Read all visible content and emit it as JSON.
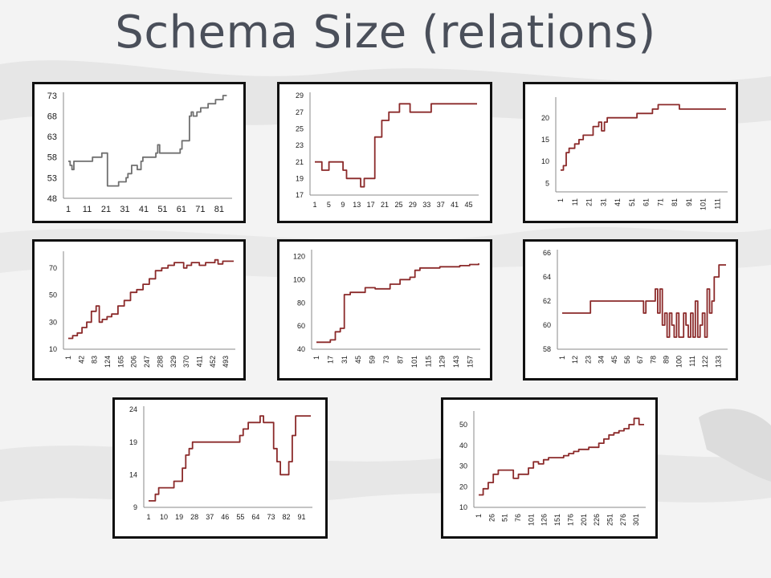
{
  "slide": {
    "title": "Schema Size (relations)"
  },
  "colors": {
    "line_primary": "#8b2a2a",
    "line_gray": "#707070",
    "panel_border": "#111111",
    "background": "#f3f3f3",
    "title": "#4a4f5a"
  },
  "chart_data": [
    {
      "type": "line",
      "color": "gray",
      "ylim": [
        48,
        73
      ],
      "yticks": [
        48,
        53,
        58,
        63,
        68,
        73
      ],
      "xticks": [
        "1",
        "11",
        "21",
        "31",
        "41",
        "51",
        "61",
        "71",
        "81"
      ],
      "xlim": [
        1,
        88
      ],
      "xlabel_rotated": false,
      "x": [
        1,
        2,
        3,
        4,
        6,
        10,
        11,
        12,
        14,
        16,
        17,
        19,
        20,
        21,
        22,
        23,
        26,
        27,
        28,
        29,
        32,
        33,
        35,
        37,
        38,
        40,
        41,
        43,
        46,
        48,
        49,
        50,
        52,
        55,
        58,
        60,
        61,
        62,
        64,
        66,
        67,
        68,
        70,
        72,
        74,
        76,
        79,
        80,
        83,
        84,
        86
      ],
      "y": [
        57,
        56,
        55,
        57,
        57,
        57,
        57,
        57,
        58,
        58,
        58,
        59,
        59,
        59,
        51,
        51,
        51,
        51,
        52,
        52,
        53,
        54,
        56,
        56,
        55,
        57,
        58,
        58,
        58,
        59,
        61,
        59,
        59,
        59,
        59,
        59,
        60,
        62,
        62,
        68,
        69,
        68,
        69,
        70,
        70,
        71,
        71,
        72,
        72,
        73,
        73
      ]
    },
    {
      "type": "line",
      "color": "primary",
      "ylim": [
        17,
        29
      ],
      "yticks": [
        17,
        19,
        21,
        23,
        25,
        27,
        29
      ],
      "xticks": [
        "1",
        "5",
        "9",
        "13",
        "17",
        "21",
        "25",
        "29",
        "33",
        "37",
        "41",
        "45"
      ],
      "xlim": [
        1,
        47
      ],
      "xlabel_rotated": false,
      "x": [
        1,
        2,
        3,
        4,
        5,
        6,
        7,
        8,
        9,
        10,
        11,
        12,
        13,
        14,
        15,
        16,
        17,
        18,
        19,
        20,
        21,
        22,
        23,
        24,
        25,
        26,
        27,
        28,
        29,
        30,
        31,
        32,
        33,
        34,
        35,
        36,
        37,
        38,
        39,
        40,
        41,
        42,
        43,
        44,
        45,
        46,
        47
      ],
      "y": [
        21,
        21,
        20,
        20,
        21,
        21,
        21,
        21,
        20,
        19,
        19,
        19,
        19,
        18,
        19,
        19,
        19,
        24,
        24,
        26,
        26,
        27,
        27,
        27,
        28,
        28,
        28,
        27,
        27,
        27,
        27,
        27,
        27,
        28,
        28,
        28,
        28,
        28,
        28,
        28,
        28,
        28,
        28,
        28,
        28,
        28,
        28
      ]
    },
    {
      "type": "line",
      "color": "primary",
      "ylim": [
        3,
        24
      ],
      "yticks": [
        5,
        10,
        15,
        20
      ],
      "xticks": [
        "1",
        "11",
        "21",
        "31",
        "41",
        "51",
        "61",
        "71",
        "81",
        "91",
        "101",
        "111"
      ],
      "xlim": [
        1,
        118
      ],
      "xlabel_rotated": true,
      "x": [
        1,
        3,
        5,
        7,
        9,
        11,
        14,
        17,
        20,
        24,
        28,
        30,
        32,
        34,
        37,
        45,
        55,
        60,
        66,
        68,
        70,
        73,
        75,
        85,
        100,
        118
      ],
      "y": [
        8,
        9,
        12,
        13,
        13,
        14,
        15,
        16,
        16,
        18,
        19,
        17,
        19,
        20,
        20,
        20,
        21,
        21,
        22,
        22,
        23,
        23,
        23,
        22,
        22,
        22
      ]
    },
    {
      "type": "line",
      "color": "primary",
      "ylim": [
        10,
        80
      ],
      "yticks": [
        10,
        30,
        50,
        70
      ],
      "xticks": [
        "1",
        "42",
        "83",
        "124",
        "165",
        "206",
        "247",
        "288",
        "329",
        "370",
        "411",
        "452",
        "493"
      ],
      "xlim": [
        1,
        530
      ],
      "xlabel_rotated": true,
      "x": [
        1,
        15,
        30,
        45,
        60,
        75,
        90,
        100,
        110,
        125,
        140,
        160,
        180,
        200,
        220,
        240,
        260,
        280,
        300,
        320,
        340,
        360,
        370,
        380,
        395,
        420,
        440,
        460,
        470,
        480,
        495,
        510,
        530
      ],
      "y": [
        18,
        20,
        22,
        26,
        30,
        38,
        42,
        30,
        32,
        34,
        36,
        42,
        46,
        52,
        54,
        58,
        62,
        68,
        70,
        72,
        74,
        74,
        70,
        72,
        74,
        72,
        74,
        74,
        76,
        73,
        75,
        75,
        75
      ]
    },
    {
      "type": "line",
      "color": "primary",
      "ylim": [
        40,
        123
      ],
      "yticks": [
        40,
        60,
        80,
        100,
        120
      ],
      "xticks": [
        "1",
        "17",
        "31",
        "45",
        "59",
        "73",
        "87",
        "101",
        "115",
        "129",
        "143",
        "157"
      ],
      "xlim": [
        1,
        164
      ],
      "xlabel_rotated": true,
      "x": [
        1,
        10,
        15,
        20,
        25,
        27,
        29,
        35,
        45,
        50,
        55,
        60,
        70,
        75,
        85,
        95,
        100,
        105,
        115,
        125,
        135,
        145,
        155,
        164
      ],
      "y": [
        46,
        46,
        48,
        55,
        58,
        58,
        87,
        89,
        89,
        93,
        93,
        92,
        92,
        96,
        100,
        102,
        108,
        110,
        110,
        111,
        111,
        112,
        113,
        114
      ]
    },
    {
      "type": "line",
      "color": "primary",
      "ylim": [
        58,
        66
      ],
      "yticks": [
        58,
        60,
        62,
        64,
        66
      ],
      "xticks": [
        "1",
        "12",
        "23",
        "34",
        "45",
        "56",
        "67",
        "78",
        "89",
        "100",
        "111",
        "122",
        "133"
      ],
      "xlim": [
        1,
        140
      ],
      "xlabel_rotated": true,
      "x": [
        1,
        20,
        25,
        40,
        60,
        68,
        70,
        72,
        75,
        80,
        82,
        84,
        86,
        88,
        90,
        92,
        94,
        96,
        98,
        100,
        102,
        104,
        106,
        108,
        110,
        112,
        114,
        116,
        118,
        120,
        122,
        124,
        126,
        128,
        130,
        132,
        134,
        136,
        140
      ],
      "y": [
        61,
        61,
        62,
        62,
        62,
        62,
        61,
        62,
        62,
        63,
        61,
        63,
        60,
        61,
        59,
        61,
        60,
        59,
        61,
        59,
        59,
        61,
        60,
        59,
        61,
        59,
        62,
        59,
        60,
        61,
        59,
        63,
        61,
        62,
        64,
        64,
        65,
        65,
        65
      ]
    },
    {
      "type": "line",
      "color": "primary",
      "ylim": [
        9,
        24
      ],
      "yticks": [
        9,
        14,
        19,
        24
      ],
      "xticks": [
        "1",
        "10",
        "19",
        "28",
        "37",
        "46",
        "55",
        "64",
        "73",
        "82",
        "91"
      ],
      "xlim": [
        1,
        97
      ],
      "xlabel_rotated": false,
      "x": [
        1,
        3,
        5,
        7,
        10,
        13,
        16,
        18,
        21,
        23,
        25,
        27,
        29,
        50,
        55,
        57,
        60,
        65,
        67,
        69,
        73,
        75,
        77,
        79,
        81,
        84,
        86,
        88,
        97
      ],
      "y": [
        10,
        10,
        11,
        12,
        12,
        12,
        13,
        13,
        15,
        17,
        18,
        19,
        19,
        19,
        20,
        21,
        22,
        22,
        23,
        22,
        22,
        18,
        16,
        14,
        14,
        16,
        20,
        23,
        23
      ]
    },
    {
      "type": "line",
      "color": "primary",
      "ylim": [
        10,
        55
      ],
      "yticks": [
        10,
        20,
        30,
        40,
        50
      ],
      "xticks": [
        "1",
        "26",
        "51",
        "76",
        "101",
        "126",
        "151",
        "176",
        "201",
        "226",
        "251",
        "276",
        "301"
      ],
      "xlim": [
        1,
        330
      ],
      "xlabel_rotated": true,
      "x": [
        1,
        10,
        20,
        30,
        40,
        50,
        60,
        70,
        80,
        90,
        100,
        110,
        120,
        130,
        140,
        150,
        160,
        170,
        180,
        190,
        200,
        210,
        220,
        230,
        240,
        250,
        260,
        270,
        280,
        290,
        300,
        310,
        320,
        330
      ],
      "y": [
        16,
        19,
        22,
        26,
        28,
        28,
        28,
        24,
        26,
        26,
        29,
        32,
        31,
        33,
        34,
        34,
        34,
        35,
        36,
        37,
        38,
        38,
        39,
        39,
        41,
        43,
        45,
        46,
        47,
        48,
        50,
        53,
        50,
        50
      ]
    }
  ]
}
